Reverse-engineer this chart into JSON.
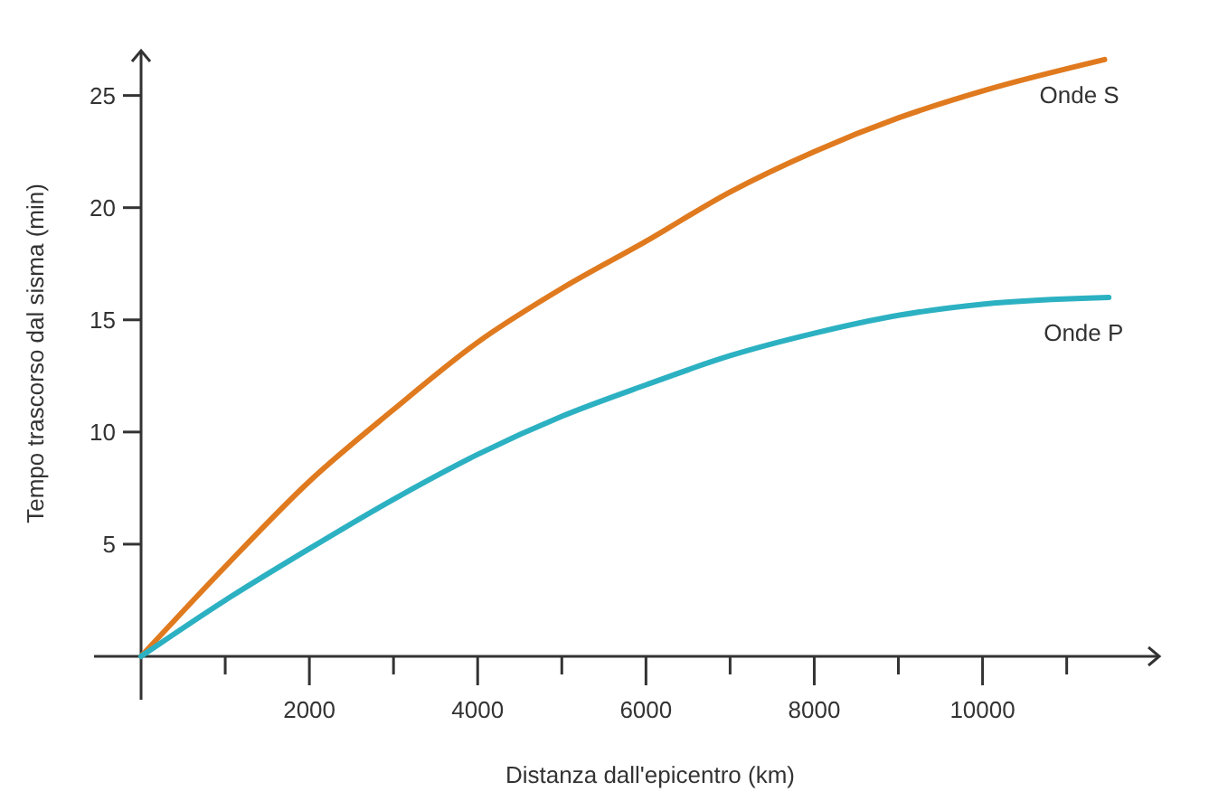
{
  "chart_data": {
    "type": "line",
    "xlabel": "Distanza dall'epicentro (km)",
    "ylabel": "Tempo trascorso dal sisma (min)",
    "xlim": [
      0,
      12100
    ],
    "ylim": [
      0,
      27
    ],
    "xticks": [
      {
        "value": 1000,
        "label": null
      },
      2000,
      {
        "value": 3000,
        "label": null
      },
      4000,
      {
        "value": 5000,
        "label": null
      },
      6000,
      {
        "value": 7000,
        "label": null
      },
      8000,
      {
        "value": 9000,
        "label": null
      },
      10000,
      {
        "value": 11000,
        "label": null
      }
    ],
    "yticks": [
      5,
      10,
      15,
      20,
      25
    ],
    "grid": false,
    "marker": "none",
    "line_style": "solid",
    "series": [
      {
        "name": "Onde S",
        "color": "#e07a1f",
        "x": [
          0,
          1000,
          2000,
          3000,
          4000,
          5000,
          6000,
          7000,
          8000,
          9000,
          10000,
          11450
        ],
        "values": [
          0,
          4.0,
          7.8,
          11.0,
          14.0,
          16.4,
          18.5,
          20.7,
          22.5,
          24.0,
          25.2,
          26.6
        ]
      },
      {
        "name": "Onde P",
        "color": "#2cb1c2",
        "x": [
          0,
          1000,
          2000,
          3000,
          4000,
          5000,
          6000,
          7000,
          8000,
          9000,
          10000,
          11500
        ],
        "values": [
          0,
          2.5,
          4.8,
          7.0,
          9.0,
          10.7,
          12.1,
          13.4,
          14.4,
          15.2,
          15.7,
          16.0
        ]
      }
    ]
  }
}
